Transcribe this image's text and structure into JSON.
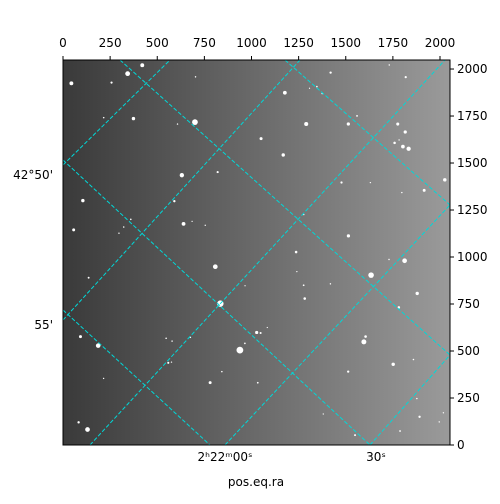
{
  "chart_data": {
    "type": "image",
    "xlabel": "pos.eq.ra",
    "xlim": [
      0,
      2053
    ],
    "ylim": [
      0,
      2048
    ],
    "xticks": [
      0,
      250,
      500,
      750,
      1000,
      1250,
      1500,
      1750,
      2000
    ],
    "yticks": [
      0,
      250,
      500,
      750,
      1000,
      1250,
      1500,
      1750,
      2000
    ],
    "ra_tick_labels": [
      "2ʰ22ᵐ00ˢ",
      "30ˢ"
    ],
    "dec_tick_labels": [
      "42°50'",
      "55'"
    ],
    "grid_color": "#00d8d8"
  }
}
